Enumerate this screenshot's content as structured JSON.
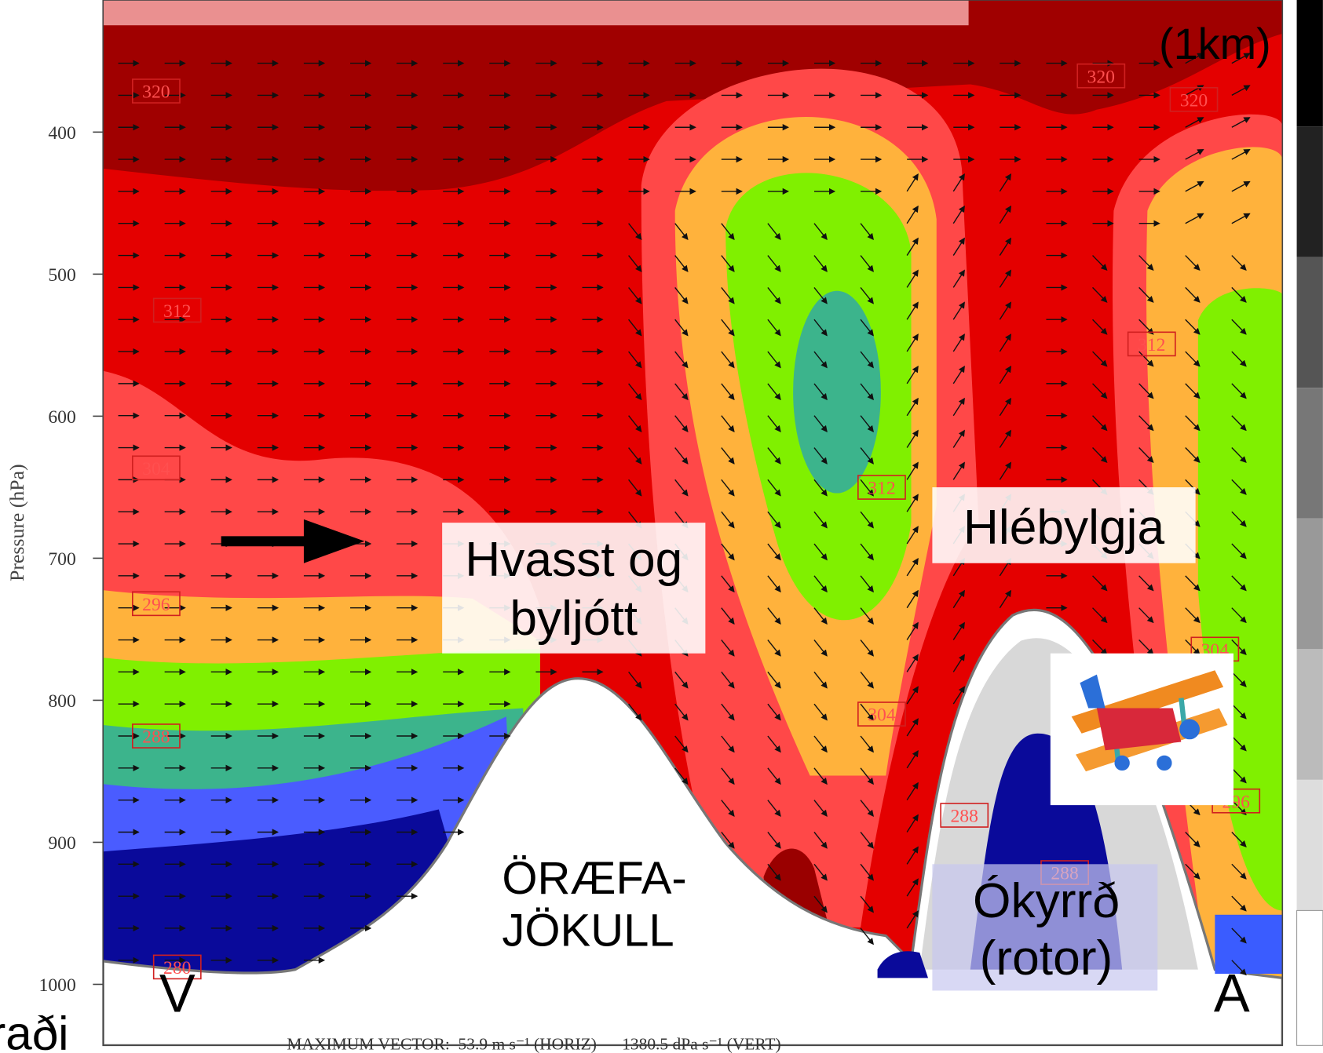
{
  "chart_data": {
    "type": "contour",
    "y_label": "Pressure (hPa)",
    "ylim": [
      307,
      1043
    ],
    "yticks": [
      400,
      500,
      600,
      700,
      800,
      900,
      1000
    ],
    "contour_labels": [
      "320",
      "312",
      "304",
      "296",
      "288",
      "280",
      "312",
      "304",
      "288",
      "288",
      "312",
      "304",
      "296",
      "320",
      "320"
    ],
    "annotations": [
      {
        "lines": [
          "(1km)"
        ]
      },
      {
        "lines": [
          "Hvasst og",
          "byljótt"
        ]
      },
      {
        "lines": [
          "Hlébylgja"
        ]
      },
      {
        "lines": [
          "ÖRÆFA-",
          "JÖKULL"
        ]
      },
      {
        "lines": [
          "Ókyrrð",
          "(rotor)"
        ]
      },
      {
        "lines": [
          "V"
        ]
      },
      {
        "lines": [
          "A"
        ]
      },
      {
        "lines": [
          "raði"
        ]
      }
    ],
    "footer": "MAXIMUM VECTOR:  53.9 m s⁻¹ (HORIZ)      1380.5 dPa s⁻¹ (VERT)"
  }
}
